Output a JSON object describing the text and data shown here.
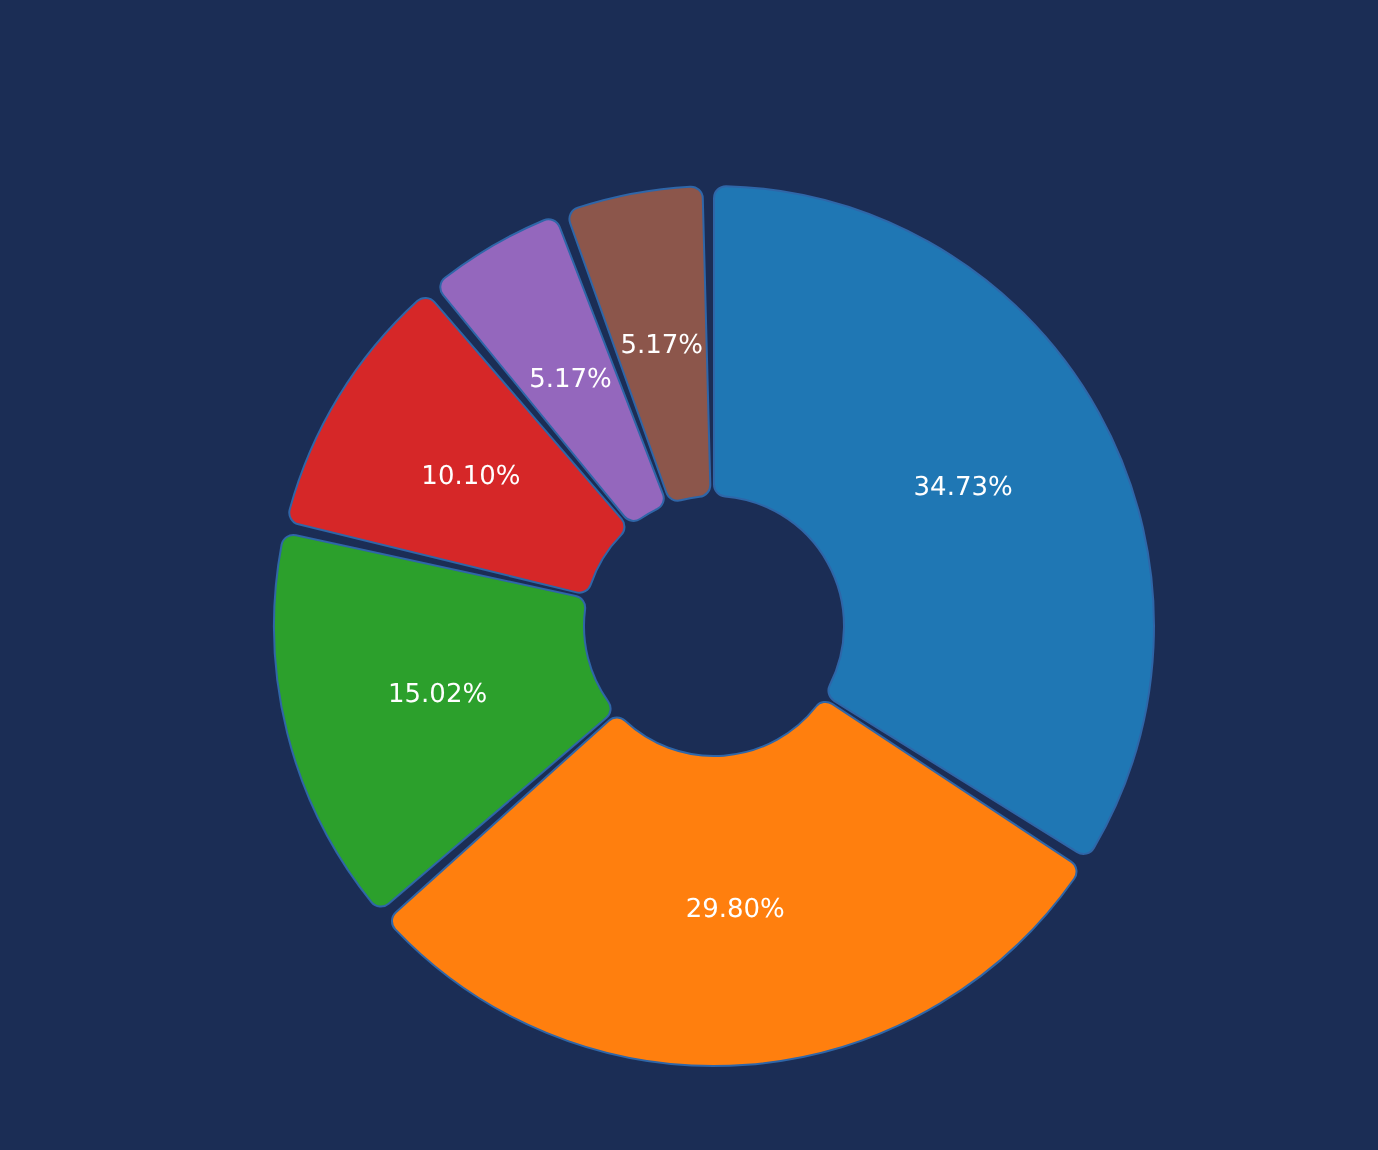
{
  "chart_data": {
    "type": "donut",
    "categories": [
      null,
      null,
      null,
      null,
      null,
      null
    ],
    "values": [
      34.73,
      29.8,
      15.02,
      10.1,
      5.17,
      5.17
    ],
    "colors": [
      "#1f77b4",
      "#ff7f0e",
      "#2ca02c",
      "#d62728",
      "#9467bd",
      "#8c564b"
    ],
    "value_labels": [
      "34.73%",
      "29.80%",
      "15.02%",
      "10.10%",
      "5.17%",
      "5.17%"
    ],
    "legend": false
  }
}
